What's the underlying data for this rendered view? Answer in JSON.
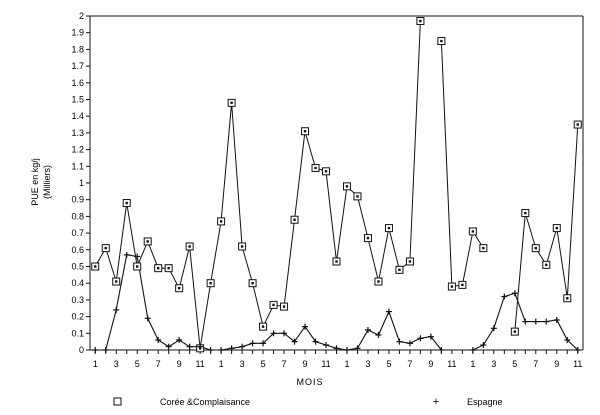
{
  "chart_data": {
    "type": "line",
    "title": "",
    "xlabel": "MOIS",
    "ylabel_line1": "PUE en kg/j",
    "ylabel_line2": "(Milliers)",
    "ylim": [
      0,
      2
    ],
    "yticks": [
      "0",
      "0.1",
      "0.2",
      "0.3",
      "0.4",
      "0.5",
      "0.6",
      "0.7",
      "0.8",
      "0.9",
      "1",
      "1.1",
      "1.2",
      "1.3",
      "1.4",
      "1.5",
      "1.6",
      "1.7",
      "1.8",
      "1.9",
      "2"
    ],
    "categories": [
      "1",
      "2",
      "3",
      "4",
      "5",
      "6",
      "7",
      "8",
      "9",
      "10",
      "11",
      "12",
      "1",
      "2",
      "3",
      "4",
      "5",
      "6",
      "7",
      "8",
      "9",
      "10",
      "11",
      "12",
      "1",
      "2",
      "3",
      "4",
      "5",
      "6",
      "7",
      "8",
      "9",
      "10",
      "11",
      "12",
      "1",
      "2",
      "3",
      "4",
      "5",
      "6",
      "7",
      "8",
      "9",
      "10",
      "11"
    ],
    "xtick_labels": [
      "1",
      "",
      "3",
      "",
      "5",
      "",
      "7",
      "",
      "9",
      "",
      "11",
      "",
      "1",
      "",
      "3",
      "",
      "5",
      "",
      "7",
      "",
      "9",
      "",
      "11",
      "",
      "1",
      "",
      "3",
      "",
      "5",
      "",
      "7",
      "",
      "9",
      "",
      "11",
      "",
      "1",
      "",
      "3",
      "",
      "5",
      "",
      "7",
      "",
      "9",
      "",
      "11"
    ],
    "grid": false,
    "legend_placement": "bottom",
    "series": [
      {
        "name": "Corée &Complaisance",
        "marker": "square",
        "values": [
          0.5,
          0.61,
          0.41,
          0.88,
          0.5,
          0.65,
          0.49,
          0.49,
          0.37,
          0.62,
          0.01,
          0.4,
          0.77,
          1.48,
          0.62,
          0.4,
          0.14,
          0.27,
          0.26,
          0.78,
          1.31,
          1.09,
          1.07,
          0.53,
          0.98,
          0.92,
          0.67,
          0.41,
          0.73,
          0.48,
          0.53,
          1.97,
          null,
          1.85,
          0.38,
          0.39,
          0.71,
          0.61,
          null,
          null,
          0.11,
          0.82,
          0.61,
          0.51,
          0.73,
          0.31,
          1.35
        ]
      },
      {
        "name": "Espagne",
        "marker": "plus",
        "values": [
          0.0,
          0.0,
          0.24,
          0.57,
          0.56,
          0.19,
          0.06,
          0.02,
          0.06,
          0.02,
          0.02,
          0.0,
          0.0,
          0.01,
          0.02,
          0.04,
          0.04,
          0.1,
          0.1,
          0.05,
          0.14,
          0.05,
          0.03,
          0.01,
          0.0,
          0.01,
          0.12,
          0.09,
          0.23,
          0.05,
          0.04,
          0.07,
          0.08,
          0.0,
          null,
          null,
          0.0,
          0.03,
          0.13,
          0.32,
          0.34,
          0.17,
          0.17,
          0.17,
          0.18,
          0.06,
          0.0
        ]
      }
    ]
  }
}
